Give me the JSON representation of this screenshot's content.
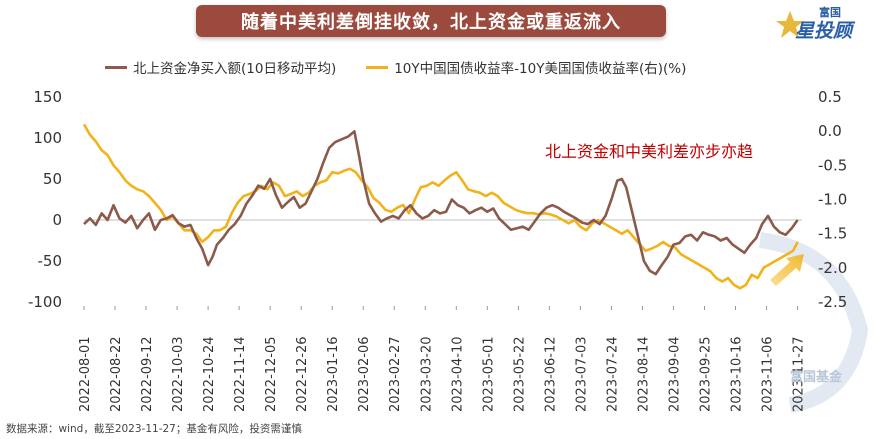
{
  "title": "随着中美利差倒挂收敛，北上资金或重返流入",
  "logo": {
    "small": "富国",
    "big": "星投顾"
  },
  "annotation": "北上资金和中美利差亦步亦趋",
  "footer": "数据来源：wind，截至2023-11-27；基金有风险，投资需谨慎",
  "watermark": "富国基金",
  "colors": {
    "northbound": "#8b5a4a",
    "spread": "#f2b21a",
    "title_bg": "#9c4a3e",
    "annotation": "#c00000"
  },
  "chart_data": {
    "type": "line",
    "legend": [
      "北上资金净买入额(10日移动平均)",
      "10Y中国国债收益率-10Y美国国债收益率(右)(%)"
    ],
    "legend_position": "top",
    "left_axis": {
      "min": -100,
      "max": 150,
      "ticks": [
        150,
        100,
        50,
        0,
        -50,
        -100
      ],
      "tick_labels": [
        "150",
        "100",
        "50",
        "0",
        "-50",
        "-100"
      ]
    },
    "right_axis": {
      "min": -2.5,
      "max": 0.5,
      "ticks": [
        0.5,
        0,
        -0.5,
        -1,
        -1.5,
        -2,
        -2.5
      ],
      "tick_labels": [
        "0.5",
        "0.0",
        "-0.5",
        "-1.0",
        "-1.5",
        "-2.0",
        "-2.5"
      ]
    },
    "x_start": "2022-08-01",
    "x_end": "2023-11-30",
    "x_tick_labels": [
      "2022-08-01",
      "2022-08-22",
      "2022-09-12",
      "2022-10-03",
      "2022-10-24",
      "2022-11-14",
      "2022-12-05",
      "2022-12-26",
      "2023-01-16",
      "2023-02-06",
      "2023-02-27",
      "2023-03-20",
      "2023-04-10",
      "2023-05-01",
      "2023-05-22",
      "2023-06-12",
      "2023-07-03",
      "2023-07-24",
      "2023-08-14",
      "2023-09-04",
      "2023-09-25",
      "2023-10-16",
      "2023-11-06",
      "2023-11-27"
    ],
    "series": [
      {
        "name": "北上资金净买入额(10日移动平均)",
        "axis": "left",
        "color": "#8b5a4a",
        "points": [
          [
            "2022-08-01",
            -5
          ],
          [
            "2022-08-05",
            2
          ],
          [
            "2022-08-09",
            -6
          ],
          [
            "2022-08-13",
            8
          ],
          [
            "2022-08-17",
            0
          ],
          [
            "2022-08-21",
            18
          ],
          [
            "2022-08-25",
            2
          ],
          [
            "2022-08-29",
            -3
          ],
          [
            "2022-09-02",
            5
          ],
          [
            "2022-09-06",
            -10
          ],
          [
            "2022-09-10",
            0
          ],
          [
            "2022-09-14",
            8
          ],
          [
            "2022-09-18",
            -12
          ],
          [
            "2022-09-22",
            0
          ],
          [
            "2022-09-26",
            2
          ],
          [
            "2022-09-30",
            6
          ],
          [
            "2022-10-04",
            -4
          ],
          [
            "2022-10-08",
            -8
          ],
          [
            "2022-10-12",
            -6
          ],
          [
            "2022-10-16",
            -22
          ],
          [
            "2022-10-20",
            -35
          ],
          [
            "2022-10-24",
            -55
          ],
          [
            "2022-10-27",
            -45
          ],
          [
            "2022-10-30",
            -30
          ],
          [
            "2022-11-03",
            -22
          ],
          [
            "2022-11-07",
            -12
          ],
          [
            "2022-11-11",
            -5
          ],
          [
            "2022-11-15",
            5
          ],
          [
            "2022-11-19",
            20
          ],
          [
            "2022-11-23",
            30
          ],
          [
            "2022-11-27",
            42
          ],
          [
            "2022-12-01",
            38
          ],
          [
            "2022-12-05",
            50
          ],
          [
            "2022-12-09",
            30
          ],
          [
            "2022-12-13",
            15
          ],
          [
            "2022-12-17",
            22
          ],
          [
            "2022-12-21",
            28
          ],
          [
            "2022-12-25",
            15
          ],
          [
            "2022-12-29",
            20
          ],
          [
            "2023-01-02",
            35
          ],
          [
            "2023-01-06",
            50
          ],
          [
            "2023-01-10",
            70
          ],
          [
            "2023-01-14",
            88
          ],
          [
            "2023-01-18",
            95
          ],
          [
            "2023-01-22",
            98
          ],
          [
            "2023-01-27",
            102
          ],
          [
            "2023-01-31",
            108
          ],
          [
            "2023-02-03",
            80
          ],
          [
            "2023-02-06",
            50
          ],
          [
            "2023-02-10",
            20
          ],
          [
            "2023-02-14",
            8
          ],
          [
            "2023-02-18",
            -2
          ],
          [
            "2023-02-22",
            2
          ],
          [
            "2023-02-26",
            5
          ],
          [
            "2023-03-02",
            2
          ],
          [
            "2023-03-06",
            12
          ],
          [
            "2023-03-10",
            18
          ],
          [
            "2023-03-14",
            8
          ],
          [
            "2023-03-18",
            2
          ],
          [
            "2023-03-22",
            5
          ],
          [
            "2023-03-26",
            12
          ],
          [
            "2023-03-30",
            8
          ],
          [
            "2023-04-03",
            10
          ],
          [
            "2023-04-07",
            25
          ],
          [
            "2023-04-11",
            18
          ],
          [
            "2023-04-15",
            15
          ],
          [
            "2023-04-19",
            8
          ],
          [
            "2023-04-23",
            12
          ],
          [
            "2023-04-27",
            15
          ],
          [
            "2023-05-01",
            10
          ],
          [
            "2023-05-05",
            14
          ],
          [
            "2023-05-09",
            2
          ],
          [
            "2023-05-13",
            -5
          ],
          [
            "2023-05-17",
            -12
          ],
          [
            "2023-05-21",
            -10
          ],
          [
            "2023-05-25",
            -8
          ],
          [
            "2023-05-29",
            -12
          ],
          [
            "2023-06-02",
            -2
          ],
          [
            "2023-06-06",
            8
          ],
          [
            "2023-06-10",
            15
          ],
          [
            "2023-06-14",
            18
          ],
          [
            "2023-06-18",
            15
          ],
          [
            "2023-06-22",
            10
          ],
          [
            "2023-06-26",
            6
          ],
          [
            "2023-06-30",
            2
          ],
          [
            "2023-07-04",
            -3
          ],
          [
            "2023-07-08",
            -5
          ],
          [
            "2023-07-12",
            0
          ],
          [
            "2023-07-16",
            -5
          ],
          [
            "2023-07-20",
            5
          ],
          [
            "2023-07-24",
            25
          ],
          [
            "2023-07-28",
            48
          ],
          [
            "2023-07-31",
            50
          ],
          [
            "2023-08-03",
            40
          ],
          [
            "2023-08-07",
            10
          ],
          [
            "2023-08-11",
            -20
          ],
          [
            "2023-08-15",
            -50
          ],
          [
            "2023-08-19",
            -62
          ],
          [
            "2023-08-23",
            -66
          ],
          [
            "2023-08-27",
            -55
          ],
          [
            "2023-08-31",
            -45
          ],
          [
            "2023-09-04",
            -30
          ],
          [
            "2023-09-08",
            -28
          ],
          [
            "2023-09-12",
            -20
          ],
          [
            "2023-09-16",
            -18
          ],
          [
            "2023-09-20",
            -25
          ],
          [
            "2023-09-24",
            -15
          ],
          [
            "2023-09-28",
            -18
          ],
          [
            "2023-10-02",
            -20
          ],
          [
            "2023-10-06",
            -25
          ],
          [
            "2023-10-10",
            -22
          ],
          [
            "2023-10-14",
            -30
          ],
          [
            "2023-10-18",
            -35
          ],
          [
            "2023-10-22",
            -40
          ],
          [
            "2023-10-26",
            -30
          ],
          [
            "2023-10-30",
            -22
          ],
          [
            "2023-11-03",
            -5
          ],
          [
            "2023-11-07",
            5
          ],
          [
            "2023-11-11",
            -8
          ],
          [
            "2023-11-15",
            -15
          ],
          [
            "2023-11-19",
            -18
          ],
          [
            "2023-11-23",
            -10
          ],
          [
            "2023-11-27",
            0
          ]
        ]
      },
      {
        "name": "10Y中国国债收益率-10Y美国国债收益率(右)(%)",
        "axis": "right",
        "color": "#f2b21a",
        "points": [
          [
            "2022-08-01",
            0.1
          ],
          [
            "2022-08-05",
            -0.05
          ],
          [
            "2022-08-09",
            -0.15
          ],
          [
            "2022-08-13",
            -0.28
          ],
          [
            "2022-08-17",
            -0.35
          ],
          [
            "2022-08-21",
            -0.5
          ],
          [
            "2022-08-25",
            -0.6
          ],
          [
            "2022-08-29",
            -0.72
          ],
          [
            "2022-09-02",
            -0.8
          ],
          [
            "2022-09-06",
            -0.85
          ],
          [
            "2022-09-10",
            -0.88
          ],
          [
            "2022-09-14",
            -0.95
          ],
          [
            "2022-09-18",
            -1.05
          ],
          [
            "2022-09-22",
            -1.15
          ],
          [
            "2022-09-26",
            -1.3
          ],
          [
            "2022-09-30",
            -1.25
          ],
          [
            "2022-10-04",
            -1.35
          ],
          [
            "2022-10-08",
            -1.45
          ],
          [
            "2022-10-12",
            -1.45
          ],
          [
            "2022-10-16",
            -1.5
          ],
          [
            "2022-10-20",
            -1.62
          ],
          [
            "2022-10-24",
            -1.55
          ],
          [
            "2022-10-28",
            -1.45
          ],
          [
            "2022-11-01",
            -1.45
          ],
          [
            "2022-11-05",
            -1.4
          ],
          [
            "2022-11-09",
            -1.2
          ],
          [
            "2022-11-13",
            -1.05
          ],
          [
            "2022-11-17",
            -0.95
          ],
          [
            "2022-11-21",
            -0.92
          ],
          [
            "2022-11-25",
            -0.88
          ],
          [
            "2022-11-29",
            -0.8
          ],
          [
            "2022-12-03",
            -0.85
          ],
          [
            "2022-12-07",
            -0.75
          ],
          [
            "2022-12-11",
            -0.8
          ],
          [
            "2022-12-15",
            -0.95
          ],
          [
            "2022-12-19",
            -0.92
          ],
          [
            "2022-12-23",
            -0.88
          ],
          [
            "2022-12-27",
            -0.95
          ],
          [
            "2022-12-31",
            -0.9
          ],
          [
            "2023-01-04",
            -0.8
          ],
          [
            "2023-01-08",
            -0.75
          ],
          [
            "2023-01-12",
            -0.72
          ],
          [
            "2023-01-16",
            -0.6
          ],
          [
            "2023-01-20",
            -0.62
          ],
          [
            "2023-01-24",
            -0.58
          ],
          [
            "2023-01-28",
            -0.55
          ],
          [
            "2023-02-01",
            -0.6
          ],
          [
            "2023-02-05",
            -0.72
          ],
          [
            "2023-02-09",
            -0.82
          ],
          [
            "2023-02-13",
            -0.98
          ],
          [
            "2023-02-17",
            -1.05
          ],
          [
            "2023-02-21",
            -1.15
          ],
          [
            "2023-02-25",
            -1.18
          ],
          [
            "2023-03-01",
            -1.12
          ],
          [
            "2023-03-05",
            -1.08
          ],
          [
            "2023-03-09",
            -1.2
          ],
          [
            "2023-03-13",
            -1.0
          ],
          [
            "2023-03-17",
            -0.82
          ],
          [
            "2023-03-21",
            -0.8
          ],
          [
            "2023-03-25",
            -0.75
          ],
          [
            "2023-03-29",
            -0.8
          ],
          [
            "2023-04-02",
            -0.72
          ],
          [
            "2023-04-06",
            -0.65
          ],
          [
            "2023-04-10",
            -0.6
          ],
          [
            "2023-04-14",
            -0.72
          ],
          [
            "2023-04-18",
            -0.85
          ],
          [
            "2023-04-22",
            -0.88
          ],
          [
            "2023-04-26",
            -0.9
          ],
          [
            "2023-04-30",
            -0.95
          ],
          [
            "2023-05-04",
            -0.9
          ],
          [
            "2023-05-08",
            -0.95
          ],
          [
            "2023-05-12",
            -1.05
          ],
          [
            "2023-05-16",
            -1.1
          ],
          [
            "2023-05-20",
            -1.15
          ],
          [
            "2023-05-24",
            -1.18
          ],
          [
            "2023-05-28",
            -1.2
          ],
          [
            "2023-06-01",
            -1.2
          ],
          [
            "2023-06-05",
            -1.22
          ],
          [
            "2023-06-09",
            -1.2
          ],
          [
            "2023-06-13",
            -1.22
          ],
          [
            "2023-06-17",
            -1.25
          ],
          [
            "2023-06-21",
            -1.3
          ],
          [
            "2023-06-25",
            -1.35
          ],
          [
            "2023-06-29",
            -1.3
          ],
          [
            "2023-07-03",
            -1.4
          ],
          [
            "2023-07-07",
            -1.45
          ],
          [
            "2023-07-11",
            -1.35
          ],
          [
            "2023-07-15",
            -1.3
          ],
          [
            "2023-07-19",
            -1.35
          ],
          [
            "2023-07-23",
            -1.4
          ],
          [
            "2023-07-27",
            -1.45
          ],
          [
            "2023-07-31",
            -1.5
          ],
          [
            "2023-08-04",
            -1.45
          ],
          [
            "2023-08-08",
            -1.55
          ],
          [
            "2023-08-12",
            -1.65
          ],
          [
            "2023-08-16",
            -1.75
          ],
          [
            "2023-08-20",
            -1.72
          ],
          [
            "2023-08-24",
            -1.68
          ],
          [
            "2023-08-28",
            -1.62
          ],
          [
            "2023-09-01",
            -1.68
          ],
          [
            "2023-09-05",
            -1.7
          ],
          [
            "2023-09-09",
            -1.8
          ],
          [
            "2023-09-13",
            -1.85
          ],
          [
            "2023-09-17",
            -1.9
          ],
          [
            "2023-09-21",
            -1.95
          ],
          [
            "2023-09-25",
            -2.0
          ],
          [
            "2023-09-29",
            -2.05
          ],
          [
            "2023-10-03",
            -2.15
          ],
          [
            "2023-10-07",
            -2.2
          ],
          [
            "2023-10-11",
            -2.15
          ],
          [
            "2023-10-15",
            -2.25
          ],
          [
            "2023-10-19",
            -2.3
          ],
          [
            "2023-10-23",
            -2.25
          ],
          [
            "2023-10-27",
            -2.1
          ],
          [
            "2023-10-31",
            -2.15
          ],
          [
            "2023-11-04",
            -2.0
          ],
          [
            "2023-11-08",
            -1.95
          ],
          [
            "2023-11-12",
            -1.9
          ],
          [
            "2023-11-16",
            -1.85
          ],
          [
            "2023-11-20",
            -1.8
          ],
          [
            "2023-11-24",
            -1.75
          ],
          [
            "2023-11-27",
            -1.62
          ]
        ]
      }
    ]
  }
}
